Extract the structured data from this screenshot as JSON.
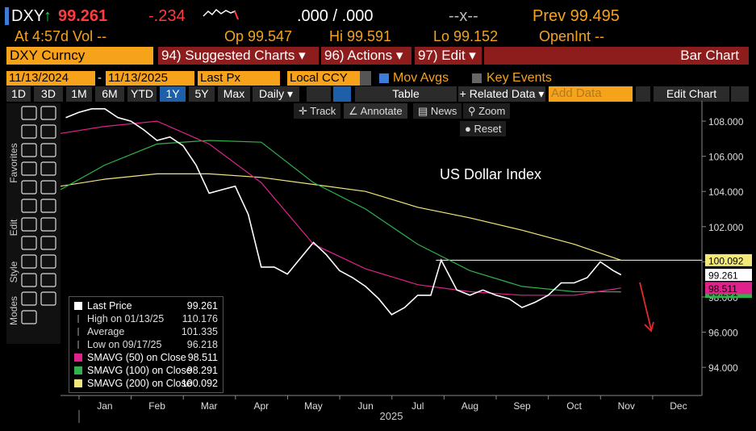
{
  "header": {
    "ticker": "DXY",
    "arrow": "↑",
    "last": "99.261",
    "change": "-.234",
    "bidask": ".000 / .000",
    "size": "--x--",
    "prev": "Prev 99.495",
    "at": "At 4:57d Vol --",
    "open": "Op 99.547",
    "high": "Hi 99.591",
    "low": "Lo 99.152",
    "openint": "OpenInt --"
  },
  "menu": {
    "security": "DXY Curncy",
    "suggested": "94) Suggested Charts ▾",
    "actions": "96) Actions ▾",
    "edit": "97) Edit ▾",
    "chart_kind": "Bar Chart"
  },
  "settings": {
    "start": "11/13/2024",
    "dash": "-",
    "end": "11/13/2025",
    "field": "Last Px",
    "currency": "Local CCY",
    "mov_avgs": "Mov Avgs",
    "key_events": "Key Events"
  },
  "toolbar": {
    "ranges": [
      "1D",
      "3D",
      "1M",
      "6M",
      "YTD",
      "1Y",
      "5Y",
      "Max"
    ],
    "active_range": "1Y",
    "period": "Daily ▾",
    "table": "Table",
    "related": "+ Related Data ▾",
    "add_data": "Add Data",
    "edit_chart": "Edit Chart"
  },
  "tools": {
    "track": "Track",
    "annotate": "Annotate",
    "news": "News",
    "zoom": "Zoom",
    "reset": "Reset"
  },
  "side_panel": [
    "Favorites",
    "Edit",
    "Style",
    "Modes"
  ],
  "chart_data": {
    "type": "line",
    "title": "US Dollar Index",
    "xlabel": "2025",
    "xlim": [
      -0.85,
      11.45
    ],
    "xticks": [
      {
        "value": 0,
        "label": "Jan"
      },
      {
        "value": 1,
        "label": "Feb"
      },
      {
        "value": 2,
        "label": "Mar"
      },
      {
        "value": 3,
        "label": "Apr"
      },
      {
        "value": 4,
        "label": "May"
      },
      {
        "value": 5,
        "label": "Jun"
      },
      {
        "value": 6,
        "label": "Jul"
      },
      {
        "value": 7,
        "label": "Aug"
      },
      {
        "value": 8,
        "label": "Sep"
      },
      {
        "value": 9,
        "label": "Oct"
      },
      {
        "value": 10,
        "label": "Nov"
      },
      {
        "value": 11,
        "label": "Dec"
      }
    ],
    "ylim": [
      92.4,
      109.15
    ],
    "yticks": [
      {
        "value": 94,
        "label": "94.000"
      },
      {
        "value": 96,
        "label": "96.000"
      },
      {
        "value": 98,
        "label": "98.000"
      },
      {
        "value": 100,
        "label": "100.000"
      },
      {
        "value": 102,
        "label": "102.000"
      },
      {
        "value": 104,
        "label": "104.000"
      },
      {
        "value": 106,
        "label": "106.000"
      },
      {
        "value": 108,
        "label": "108.000"
      }
    ],
    "series": [
      {
        "name": "Last Price",
        "color": "#ffffff",
        "last": 99.261,
        "x": [
          -0.75,
          -0.5,
          -0.25,
          0,
          0.25,
          0.5,
          0.75,
          1,
          1.25,
          1.5,
          1.75,
          2,
          2.25,
          2.5,
          2.75,
          3,
          3.25,
          3.5,
          3.75,
          4,
          4.25,
          4.5,
          4.75,
          5,
          5.25,
          5.5,
          5.75,
          6,
          6.25,
          6.45,
          6.75,
          7,
          7.25,
          7.5,
          7.75,
          8,
          8.25,
          8.5,
          8.75,
          9,
          9.25,
          9.5,
          9.75,
          9.9
        ],
        "values": [
          108.2,
          108.5,
          108.7,
          108.7,
          108.2,
          108,
          107.5,
          106.9,
          107.1,
          106.6,
          105.5,
          103.9,
          104.1,
          104.3,
          102.7,
          99.7,
          99.7,
          99.3,
          100.2,
          101.1,
          100.4,
          99.5,
          99.1,
          98.6,
          97.9,
          97,
          97.4,
          98.1,
          98.1,
          100.1,
          98.4,
          98.1,
          98.4,
          98.1,
          97.9,
          97.4,
          97.7,
          98.1,
          98.8,
          98.8,
          99.1,
          100,
          99.5,
          99.261
        ]
      },
      {
        "name": "SMAVG (50)  on Close",
        "color": "#e0228c",
        "last": 98.511,
        "x": [
          -0.85,
          0,
          1,
          2,
          3,
          4,
          5,
          6,
          7,
          8,
          9,
          9.9
        ],
        "values": [
          107.3,
          107.7,
          108,
          106.7,
          104.5,
          101,
          99.6,
          98.7,
          98.3,
          98.1,
          98.1,
          98.511
        ]
      },
      {
        "name": "SMAVG (100)  on Close",
        "color": "#2fb34a",
        "last": 98.291,
        "x": [
          -0.85,
          0,
          1,
          2,
          3,
          4,
          5,
          6,
          7,
          8,
          9,
          9.9
        ],
        "values": [
          104.1,
          105.5,
          106.7,
          106.9,
          106.8,
          104.5,
          103,
          101,
          99.5,
          98.6,
          98.3,
          98.291
        ]
      },
      {
        "name": "SMAVG (200)  on Close",
        "color": "#f3e97a",
        "last": 100.092,
        "x": [
          -0.85,
          0,
          1,
          2,
          3,
          4,
          5,
          6,
          7,
          8,
          9,
          9.9
        ],
        "values": [
          104.3,
          104.7,
          105,
          105,
          104.8,
          104.4,
          104,
          103.1,
          102.5,
          101.8,
          101,
          100.092
        ]
      }
    ],
    "stats": [
      {
        "label": "High on 01/13/25",
        "value": 110.176
      },
      {
        "label": "Average",
        "value": 101.335
      },
      {
        "label": "Low on 09/17/25",
        "value": 96.218
      }
    ],
    "hline": {
      "value": 100.092,
      "x_start": 6.35
    }
  }
}
